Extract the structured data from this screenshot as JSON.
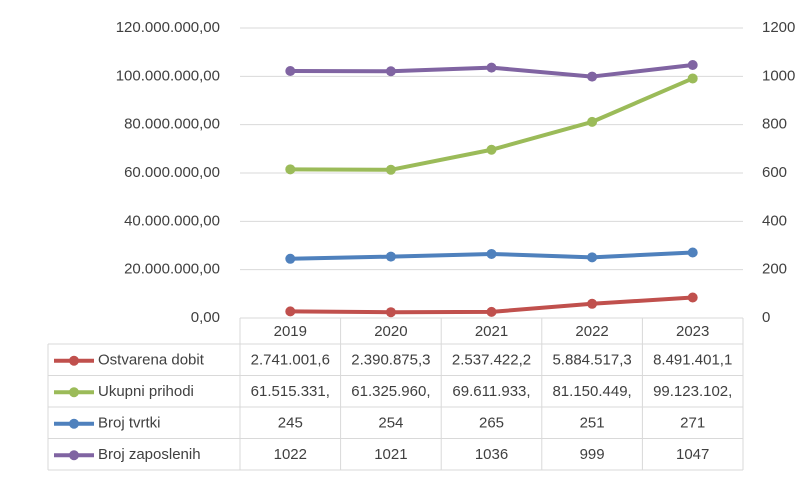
{
  "chart_data": {
    "type": "line",
    "categories": [
      "2019",
      "2020",
      "2021",
      "2022",
      "2023"
    ],
    "series": [
      {
        "name": "Ostvarena dobit",
        "color": "#c0504d",
        "axis": "y",
        "values": [
          2741001.6,
          2390875.3,
          2537422.2,
          5884517.3,
          8491401.1
        ],
        "value_labels": [
          "2.741.001,6",
          "2.390.875,3",
          "2.537.422,2",
          "5.884.517,3",
          "8.491.401,1"
        ]
      },
      {
        "name": "Ukupni prihodi",
        "color": "#9bbb59",
        "axis": "y",
        "values": [
          61515331,
          61325960,
          69611933,
          81150449,
          99123102
        ],
        "value_labels": [
          "61.515.331,",
          "61.325.960,",
          "69.611.933,",
          "81.150.449,",
          "99.123.102,"
        ]
      },
      {
        "name": "Broj tvrtki",
        "color": "#4f81bd",
        "axis": "y2",
        "values": [
          245,
          254,
          265,
          251,
          271
        ]
      },
      {
        "name": "Broj zaposlenih",
        "color": "#8064a2",
        "axis": "y2",
        "values": [
          1022,
          1021,
          1036,
          999,
          1047
        ]
      }
    ],
    "ylim": [
      0,
      120000000
    ],
    "yticks": [
      {
        "value": 0,
        "label": "0,00"
      },
      {
        "value": 20000000,
        "label": "20.000.000,00"
      },
      {
        "value": 40000000,
        "label": "40.000.000,00"
      },
      {
        "value": 60000000,
        "label": "60.000.000,00"
      },
      {
        "value": 80000000,
        "label": "80.000.000,00"
      },
      {
        "value": 100000000,
        "label": "100.000.000,00"
      },
      {
        "value": 120000000,
        "label": "120.000.000,00"
      }
    ],
    "y2lim": [
      0,
      1200
    ],
    "y2ticks": [
      0,
      200,
      400,
      600,
      800,
      1000,
      1200
    ],
    "grid": true,
    "legend": "table"
  }
}
